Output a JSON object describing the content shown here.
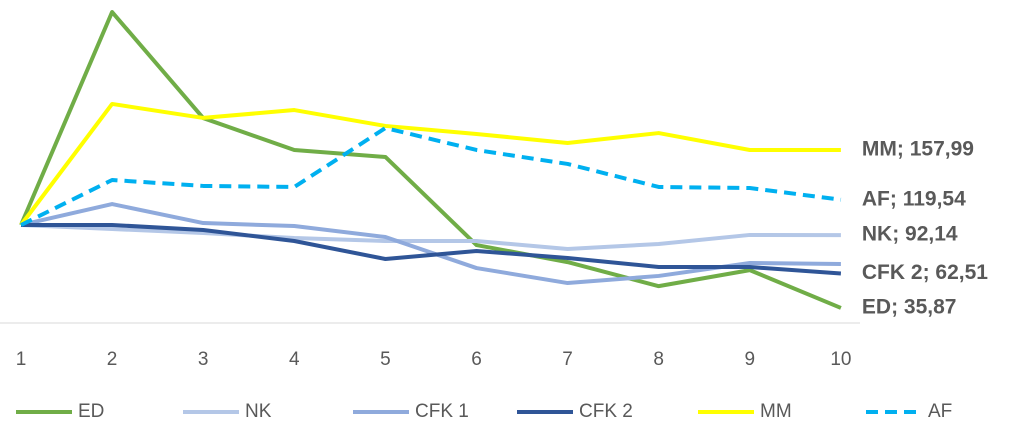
{
  "chart_data": {
    "type": "line",
    "categories": [
      "1",
      "2",
      "3",
      "4",
      "5",
      "6",
      "7",
      "8",
      "9",
      "10"
    ],
    "ylim": [
      24.2,
      274
    ],
    "grid": false,
    "legend": "bottom",
    "series": [
      {
        "name": "ED",
        "color": "#70ad47",
        "label_color": "#00b050",
        "dashed": false,
        "values": [
          100,
          264.7,
          182.7,
          158.0,
          152.6,
          84.5,
          71.3,
          52.7,
          65.1,
          35.87
        ],
        "value_labels": [
          null,
          null,
          null,
          null,
          null,
          null,
          null,
          null,
          null,
          "ED; 35,87"
        ]
      },
      {
        "name": "NK",
        "color": "#b4c7e7",
        "label_color": "#8497b0",
        "dashed": false,
        "values": [
          100,
          96.9,
          93.8,
          89.9,
          87.6,
          87.6,
          81.4,
          85.3,
          92.3,
          92.14
        ],
        "value_labels": [
          null,
          null,
          null,
          null,
          null,
          null,
          null,
          null,
          null,
          "NK; 92,14"
        ]
      },
      {
        "name": "CFK 1",
        "color": "#8faadc",
        "label_color": "#8faadc",
        "dashed": false,
        "values": [
          100,
          116.2,
          101.5,
          99.2,
          90.7,
          66.7,
          55.1,
          60.6,
          70.6,
          69.8
        ],
        "value_labels": [
          null,
          null,
          null,
          null,
          null,
          null,
          null,
          null,
          null,
          null
        ]
      },
      {
        "name": "CFK 2",
        "color": "#2f5597",
        "label_color": "#002060",
        "dashed": false,
        "values": [
          100,
          100,
          96.1,
          87.6,
          73.7,
          79.9,
          74.5,
          67.5,
          67.5,
          62.51
        ],
        "value_labels": [
          null,
          null,
          null,
          null,
          null,
          null,
          null,
          null,
          null,
          "CFK 2; 62,51"
        ]
      },
      {
        "name": "MM",
        "color": "#ffff00",
        "label_color": "#ffff00",
        "dashed": false,
        "values": [
          100,
          193.6,
          182.8,
          188.9,
          176.6,
          170.4,
          163.4,
          171.1,
          158.0,
          157.99
        ],
        "value_labels": [
          null,
          null,
          null,
          null,
          null,
          null,
          null,
          null,
          null,
          "MM; 157,99"
        ]
      },
      {
        "name": "AF",
        "color": "#00b0f0",
        "label_color": "#00b0f0",
        "dashed": true,
        "values": [
          100,
          134.8,
          130.2,
          129.4,
          175.0,
          158.0,
          147.2,
          129.4,
          128.6,
          119.54
        ],
        "value_labels": [
          null,
          null,
          null,
          null,
          null,
          null,
          null,
          null,
          null,
          "AF; 119,54"
        ]
      }
    ]
  }
}
